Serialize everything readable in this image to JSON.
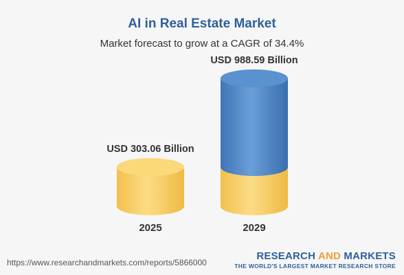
{
  "header": {
    "title": "AI in Real Estate Market",
    "subtitle": "Market forecast to grow at a CAGR of 34.4%"
  },
  "footer": {
    "source_url": "https://www.researchandmarkets.com/reports/5866000",
    "brand_research": "RESEARCH",
    "brand_and": "AND",
    "brand_markets": "MARKETS",
    "brand_tagline": "THE WORLD'S LARGEST MARKET RESEARCH STORE"
  },
  "colors": {
    "yellow": "#f7c75a",
    "blue": "#4f86c6",
    "title": "#2f5f9a"
  },
  "chart_data": {
    "type": "bar",
    "style": "3d-cylinder",
    "categories": [
      "2025",
      "2029"
    ],
    "values": [
      303.06,
      988.59
    ],
    "unit": "USD Billion",
    "data_labels": [
      "USD 303.06 Billion",
      "USD 988.59 Billion"
    ],
    "title": "AI in Real Estate Market",
    "subtitle": "Market forecast to grow at a CAGR of 34.4%",
    "xlabel": "",
    "ylabel": "",
    "base_value_2029": 303.06,
    "growth_value_2029": 685.53,
    "grid": false,
    "legend": "none"
  }
}
